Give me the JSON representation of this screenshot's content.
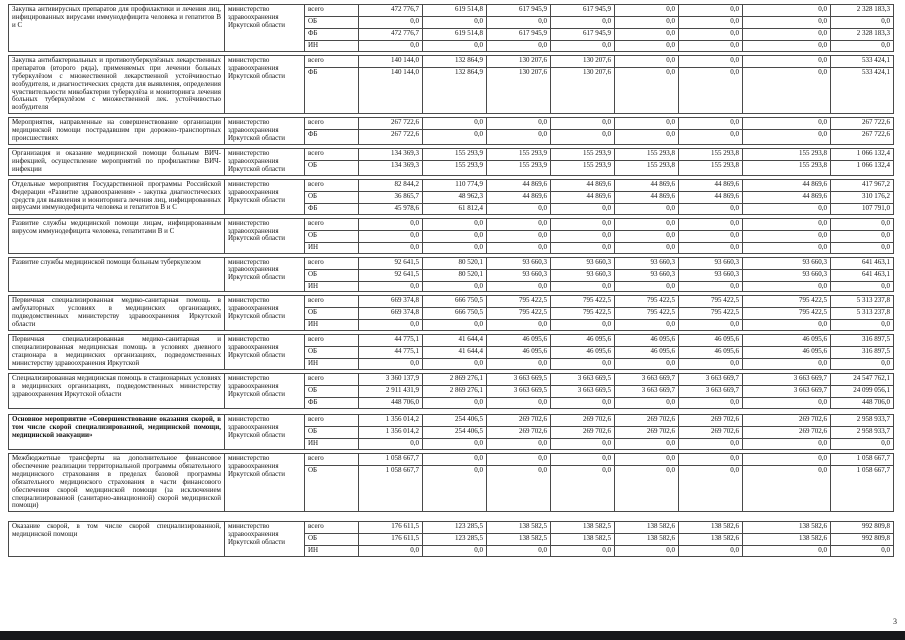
{
  "page": {
    "number": "3"
  },
  "table": {
    "ministry": "министерство здравоохранения Иркутской области",
    "source_labels": [
      "всего",
      "ОБ",
      "ФБ",
      "ИН"
    ],
    "blocks": [
      {
        "name": "Закупка антивирусных препаратов для профилактики и лечения лиц, инфицированных вирусами иммунодефицита человека и гепатитов В и С",
        "bold": false,
        "ministry": "министерство здравоохранения Иркутской области",
        "rows": [
          {
            "source": "всего",
            "values": [
              "472 776,7",
              "619 514,8",
              "617 945,9",
              "617 945,9",
              "0,0",
              "0,0",
              "0,0",
              "2 328 183,3"
            ]
          },
          {
            "source": "ОБ",
            "values": [
              "0,0",
              "0,0",
              "0,0",
              "0,0",
              "0,0",
              "0,0",
              "0,0",
              "0,0"
            ]
          },
          {
            "source": "ФБ",
            "values": [
              "472 776,7",
              "619 514,8",
              "617 945,9",
              "617 945,9",
              "0,0",
              "0,0",
              "0,0",
              "2 328 183,3"
            ]
          },
          {
            "source": "ИН",
            "values": [
              "0,0",
              "0,0",
              "0,0",
              "0,0",
              "0,0",
              "0,0",
              "0,0",
              "0,0"
            ]
          }
        ]
      },
      {
        "name": "Закупка антибактериальных и противотуберкулёзных лекарственных препаратов (второго ряда), применяемых при лечении больных туберкулёзом с множественной лекарственной устойчивостью возбудителя, и диагностических средств для выявления, определения чувствительности микобактерии туберкулёза и мониторинга лечения больных туберкулёзом с множественной лек. устойчивостью возбудителя",
        "bold": false,
        "ministry": "министерство здравоохранения Иркутской области",
        "rows": [
          {
            "source": "всего",
            "values": [
              "140 144,0",
              "132 864,9",
              "130 207,6",
              "130 207,6",
              "0,0",
              "0,0",
              "0,0",
              "533 424,1"
            ]
          },
          {
            "source": "ФБ",
            "values": [
              "140 144,0",
              "132 864,9",
              "130 207,6",
              "130 207,6",
              "0,0",
              "0,0",
              "0,0",
              "533 424,1"
            ]
          }
        ]
      },
      {
        "name": "Мероприятия, направленные на совершенствование организации медицинской помощи пострадавшим при дорожно-транспортных происшествиях",
        "bold": false,
        "ministry": "министерство здравоохранения Иркутской области",
        "rows": [
          {
            "source": "всего",
            "values": [
              "267 722,6",
              "0,0",
              "0,0",
              "0,0",
              "0,0",
              "0,0",
              "0,0",
              "267 722,6"
            ]
          },
          {
            "source": "ФБ",
            "values": [
              "267 722,6",
              "0,0",
              "0,0",
              "0,0",
              "0,0",
              "0,0",
              "0,0",
              "267 722,6"
            ]
          }
        ]
      },
      {
        "name": "Организация и оказание медицинской помощи больным ВИЧ-инфекцией, осуществление мероприятий по профилактике ВИЧ-инфекции",
        "bold": false,
        "ministry": "министерство здравоохранения Иркутской области",
        "rows": [
          {
            "source": "всего",
            "values": [
              "134 369,3",
              "155 293,9",
              "155 293,9",
              "155 293,9",
              "155 293,8",
              "155 293,8",
              "155 293,8",
              "1 066 132,4"
            ]
          },
          {
            "source": "ОБ",
            "values": [
              "134 369,3",
              "155 293,9",
              "155 293,9",
              "155 293,9",
              "155 293,8",
              "155 293,8",
              "155 293,8",
              "1 066 132,4"
            ]
          }
        ]
      },
      {
        "name": "Отдельные мероприятия Государственной программы Российской Федерации «Развитие здравоохранения» - закупка диагностических средств для выявления и мониторинга лечения лиц, инфицированных вирусами иммунодефицита человека и гепатитов В и С",
        "bold": false,
        "ministry": "министерство здравоохранения Иркутской области",
        "rows": [
          {
            "source": "всего",
            "values": [
              "82 844,2",
              "110 774,9",
              "44 869,6",
              "44 869,6",
              "44 869,6",
              "44 869,6",
              "44 869,6",
              "417 967,2"
            ]
          },
          {
            "source": "ОБ",
            "values": [
              "36 865,7",
              "48 962,3",
              "44 869,6",
              "44 869,6",
              "44 869,6",
              "44 869,6",
              "44 869,6",
              "310 176,2"
            ]
          },
          {
            "source": "ФБ",
            "values": [
              "45 978,6",
              "61 812,4",
              "0,0",
              "0,0",
              "0,0",
              "0,0",
              "0,0",
              "107 791,0"
            ]
          }
        ]
      },
      {
        "name": "Развитие службы медицинской помощи лицам, инфицированным вирусом иммунодефицита человека, гепатитами В и С",
        "bold": false,
        "ministry": "министерство здравоохранения Иркутской области",
        "rows": [
          {
            "source": "всего",
            "values": [
              "0,0",
              "0,0",
              "0,0",
              "0,0",
              "0,0",
              "0,0",
              "0,0",
              "0,0"
            ]
          },
          {
            "source": "ОБ",
            "values": [
              "0,0",
              "0,0",
              "0,0",
              "0,0",
              "0,0",
              "0,0",
              "0,0",
              "0,0"
            ]
          },
          {
            "source": "ИН",
            "values": [
              "0,0",
              "0,0",
              "0,0",
              "0,0",
              "0,0",
              "0,0",
              "0,0",
              "0,0"
            ]
          }
        ]
      },
      {
        "name": "Развитие службы медицинской помощи больным туберкулезом",
        "bold": false,
        "ministry": "министерство здравоохранения Иркутской области",
        "rows": [
          {
            "source": "всего",
            "values": [
              "92 641,5",
              "80 520,1",
              "93 660,3",
              "93 660,3",
              "93 660,3",
              "93 660,3",
              "93 660,3",
              "641 463,1"
            ]
          },
          {
            "source": "ОБ",
            "values": [
              "92 641,5",
              "80 520,1",
              "93 660,3",
              "93 660,3",
              "93 660,3",
              "93 660,3",
              "93 660,3",
              "641 463,1"
            ]
          },
          {
            "source": "ИН",
            "values": [
              "0,0",
              "0,0",
              "0,0",
              "0,0",
              "0,0",
              "0,0",
              "0,0",
              "0,0"
            ]
          }
        ]
      },
      {
        "name": "Первичная специализированная медико-санитарная помощь в амбулаторных условиях в медицинских организациях, подведомственных министерству здравоохранения Иркутской области",
        "bold": false,
        "ministry": "министерство здравоохранения Иркутской области",
        "rows": [
          {
            "source": "всего",
            "values": [
              "669 374,8",
              "666 750,5",
              "795 422,5",
              "795 422,5",
              "795 422,5",
              "795 422,5",
              "795 422,5",
              "5 313 237,8"
            ]
          },
          {
            "source": "ОБ",
            "values": [
              "669 374,8",
              "666 750,5",
              "795 422,5",
              "795 422,5",
              "795 422,5",
              "795 422,5",
              "795 422,5",
              "5 313 237,8"
            ]
          },
          {
            "source": "ИН",
            "values": [
              "0,0",
              "0,0",
              "0,0",
              "0,0",
              "0,0",
              "0,0",
              "0,0",
              "0,0"
            ]
          }
        ]
      },
      {
        "name": "Первичная специализированная медико-санитарная и специализированная медицинская помощь в условиях дневного стационара в медицинских организациях, подведомственных министерству здравоохранения Иркутской",
        "bold": false,
        "ministry": "министерство здравоохранения Иркутской области",
        "rows": [
          {
            "source": "всего",
            "values": [
              "44 775,1",
              "41 644,4",
              "46 095,6",
              "46 095,6",
              "46 095,6",
              "46 095,6",
              "46 095,6",
              "316 897,5"
            ]
          },
          {
            "source": "ОБ",
            "values": [
              "44 775,1",
              "41 644,4",
              "46 095,6",
              "46 095,6",
              "46 095,6",
              "46 095,6",
              "46 095,6",
              "316 897,5"
            ]
          },
          {
            "source": "ИН",
            "values": [
              "0,0",
              "0,0",
              "0,0",
              "0,0",
              "0,0",
              "0,0",
              "0,0",
              "0,0"
            ]
          }
        ]
      },
      {
        "name": "Специализированная медицинская помощь в стационарных условиях в медицинских организациях, подведомственных министерству здравоохранения Иркутской области",
        "bold": false,
        "ministry": "министерство здравоохранения Иркутской области",
        "rows": [
          {
            "source": "всего",
            "values": [
              "3 360 137,9",
              "2 869 276,1",
              "3 663 669,5",
              "3 663 669,5",
              "3 663 669,7",
              "3 663 669,7",
              "3 663 669,7",
              "24 547 762,1"
            ]
          },
          {
            "source": "ОБ",
            "values": [
              "2 911 431,9",
              "2 869 276,1",
              "3 663 669,5",
              "3 663 669,5",
              "3 663 669,7",
              "3 663 669,7",
              "3 663 669,7",
              "24 099 056,1"
            ]
          },
          {
            "source": "ФБ",
            "values": [
              "448 706,0",
              "0,0",
              "0,0",
              "0,0",
              "0,0",
              "0,0",
              "0,0",
              "448 706,0"
            ]
          }
        ]
      },
      {
        "name": "Основное мероприятие «Совершенствование оказания скорой, в том числе скорой специализированной, медицинской помощи, медицинской эвакуации»",
        "bold": true,
        "ministry": "министерство здравоохранения Иркутской области",
        "rows": [
          {
            "source": "всего",
            "values": [
              "1 356 014,2",
              "254 406,5",
              "269 702,6",
              "269 702,6",
              "269 702,6",
              "269 702,6",
              "269 702,6",
              "2 958 933,7"
            ]
          },
          {
            "source": "ОБ",
            "values": [
              "1 356 014,2",
              "254 406,5",
              "269 702,6",
              "269 702,6",
              "269 702,6",
              "269 702,6",
              "269 702,6",
              "2 958 933,7"
            ]
          },
          {
            "source": "ИН",
            "values": [
              "0,0",
              "0,0",
              "0,0",
              "0,0",
              "0,0",
              "0,0",
              "0,0",
              "0,0"
            ]
          }
        ]
      },
      {
        "name": "Межбюджетные трансферты на дополнительное финансовое обеспечение реализации территориальной программы обязательного медицинского страхования в пределах базовой программы обязательного медицинского страхования в части финансового обеспечения скорой медицинской помощи (за исключением специализированной (санитарно-авиационной) скорой медицинской помощи)",
        "bold": false,
        "ministry": "министерство здравоохранения Иркутской области",
        "rows": [
          {
            "source": "всего",
            "values": [
              "1 058 667,7",
              "0,0",
              "0,0",
              "0,0",
              "0,0",
              "0,0",
              "0,0",
              "1 058 667,7"
            ]
          },
          {
            "source": "ОБ",
            "values": [
              "1 058 667,7",
              "0,0",
              "0,0",
              "0,0",
              "0,0",
              "0,0",
              "0,0",
              "1 058 667,7"
            ]
          }
        ]
      },
      {
        "name": "Оказание скорой, в том числе скорой специализированной, медицинской помощи",
        "bold": false,
        "ministry": "министерство здравоохранения Иркутской области",
        "rows": [
          {
            "source": "всего",
            "values": [
              "176 611,5",
              "123 285,5",
              "138 582,5",
              "138 582,5",
              "138 582,6",
              "138 582,6",
              "138 582,6",
              "992 809,8"
            ]
          },
          {
            "source": "ОБ",
            "values": [
              "176 611,5",
              "123 285,5",
              "138 582,5",
              "138 582,5",
              "138 582,6",
              "138 582,6",
              "138 582,6",
              "992 809,8"
            ]
          },
          {
            "source": "ИН",
            "values": [
              "0,0",
              "0,0",
              "0,0",
              "0,0",
              "0,0",
              "0,0",
              "0,0",
              "0,0"
            ]
          }
        ]
      }
    ]
  }
}
